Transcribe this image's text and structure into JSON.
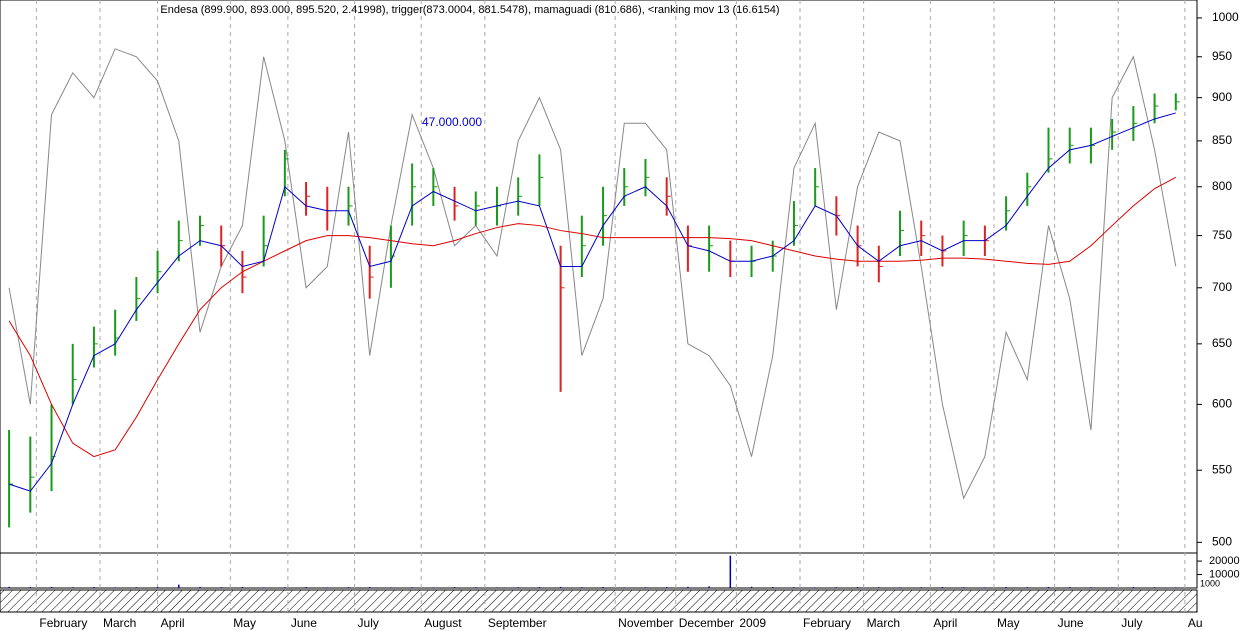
{
  "chart_data": {
    "type": "ohlc",
    "title": "Endesa (899.900, 893.000, 895.520, 2.41998), trigger(873.0004, 881.5478), mamaguadi (810.686), <ranking mov 13 (16.6154)",
    "annotation": "47.000.000",
    "log_scale": true,
    "xlim": [
      0,
      395
    ],
    "xticks": [
      {
        "value": 12,
        "label": "February"
      },
      {
        "value": 33,
        "label": "March"
      },
      {
        "value": 52,
        "label": "April"
      },
      {
        "value": 76,
        "label": "May"
      },
      {
        "value": 95,
        "label": "June"
      },
      {
        "value": 117,
        "label": "July"
      },
      {
        "value": 139,
        "label": "August"
      },
      {
        "value": 160,
        "label": "September"
      },
      {
        "value": 203,
        "label": "November"
      },
      {
        "value": 223,
        "label": "December"
      },
      {
        "value": 243,
        "label": "2009"
      },
      {
        "value": 264,
        "label": "February"
      },
      {
        "value": 285,
        "label": "March"
      },
      {
        "value": 307,
        "label": "April"
      },
      {
        "value": 328,
        "label": "May"
      },
      {
        "value": 348,
        "label": "June"
      },
      {
        "value": 369,
        "label": "July"
      },
      {
        "value": 391,
        "label": "Au"
      }
    ],
    "ylim": [
      493,
      1024
    ],
    "yticks": [
      500,
      550,
      600,
      650,
      700,
      750,
      800,
      850,
      900,
      950,
      1000
    ],
    "x": [
      3,
      10,
      17,
      24,
      31,
      38,
      45,
      52,
      59,
      66,
      73,
      80,
      87,
      94,
      101,
      108,
      115,
      122,
      129,
      136,
      143,
      150,
      157,
      164,
      171,
      178,
      185,
      192,
      199,
      206,
      213,
      220,
      227,
      234,
      241,
      248,
      255,
      262,
      269,
      276,
      283,
      290,
      297,
      304,
      311,
      318,
      325,
      332,
      339,
      346,
      353,
      360,
      367,
      374,
      381,
      388
    ],
    "high": [
      580,
      575,
      600,
      650,
      665,
      680,
      710,
      735,
      765,
      770,
      760,
      735,
      770,
      840,
      805,
      800,
      800,
      740,
      760,
      825,
      820,
      800,
      795,
      800,
      810,
      835,
      740,
      770,
      800,
      820,
      830,
      810,
      760,
      760,
      745,
      740,
      745,
      785,
      820,
      790,
      760,
      740,
      775,
      765,
      750,
      765,
      760,
      790,
      815,
      865,
      865,
      865,
      875,
      890,
      905,
      905
    ],
    "low": [
      510,
      520,
      535,
      600,
      630,
      640,
      670,
      695,
      725,
      740,
      720,
      695,
      720,
      790,
      770,
      755,
      760,
      690,
      700,
      760,
      780,
      765,
      760,
      760,
      770,
      780,
      610,
      710,
      740,
      780,
      790,
      770,
      715,
      715,
      710,
      710,
      715,
      740,
      780,
      750,
      720,
      705,
      730,
      730,
      720,
      730,
      730,
      755,
      780,
      815,
      825,
      825,
      840,
      850,
      870,
      885
    ],
    "close": [
      540,
      545,
      560,
      620,
      650,
      655,
      690,
      715,
      745,
      760,
      740,
      710,
      740,
      830,
      790,
      775,
      780,
      710,
      730,
      800,
      800,
      780,
      780,
      780,
      790,
      810,
      700,
      740,
      770,
      800,
      810,
      790,
      740,
      740,
      725,
      725,
      730,
      760,
      800,
      770,
      740,
      720,
      755,
      750,
      735,
      750,
      745,
      775,
      800,
      830,
      845,
      845,
      860,
      870,
      890,
      895
    ],
    "series": [
      {
        "name": "trigger",
        "color": "#0000cc",
        "values": [
          540,
          535,
          555,
          600,
          640,
          650,
          680,
          705,
          730,
          745,
          740,
          720,
          725,
          800,
          780,
          775,
          775,
          720,
          725,
          780,
          795,
          785,
          775,
          780,
          785,
          780,
          720,
          720,
          760,
          790,
          800,
          780,
          740,
          735,
          725,
          725,
          730,
          745,
          780,
          770,
          740,
          725,
          740,
          745,
          735,
          745,
          745,
          760,
          790,
          820,
          840,
          845,
          855,
          865,
          875,
          882
        ]
      },
      {
        "name": "mamaguadi",
        "color": "#dd0000",
        "values": [
          670,
          640,
          600,
          570,
          560,
          565,
          590,
          620,
          650,
          680,
          700,
          715,
          725,
          735,
          745,
          750,
          750,
          748,
          745,
          742,
          740,
          745,
          752,
          758,
          762,
          760,
          755,
          752,
          748,
          748,
          748,
          748,
          748,
          748,
          747,
          745,
          740,
          735,
          730,
          727,
          725,
          725,
          725,
          726,
          728,
          728,
          727,
          725,
          723,
          722,
          725,
          740,
          760,
          780,
          798,
          810
        ]
      },
      {
        "name": "ranking mov 13",
        "color": "#888888",
        "values": [
          700,
          600,
          880,
          930,
          900,
          960,
          950,
          920,
          850,
          660,
          720,
          760,
          950,
          850,
          700,
          720,
          860,
          640,
          760,
          880,
          820,
          740,
          760,
          730,
          850,
          900,
          840,
          640,
          690,
          870,
          870,
          840,
          650,
          640,
          615,
          560,
          640,
          820,
          870,
          680,
          800,
          860,
          850,
          720,
          600,
          530,
          560,
          660,
          620,
          760,
          690,
          580,
          900,
          950,
          840,
          720
        ]
      }
    ],
    "volume": {
      "color": "#0000aa",
      "ylim": [
        0,
        26000
      ],
      "yticks": [
        10000,
        20000
      ],
      "footer_label": "1000",
      "values": [
        900,
        700,
        800,
        600,
        700,
        500,
        600,
        700,
        2500,
        800,
        600,
        700,
        500,
        600,
        700,
        500,
        600,
        700,
        500,
        600,
        500,
        700,
        600,
        500,
        600,
        700,
        800,
        600,
        700,
        500,
        600,
        700,
        900,
        1200,
        24000,
        900,
        700,
        600,
        500,
        600,
        700,
        600,
        500,
        600,
        700,
        600,
        500,
        700,
        600,
        800,
        700,
        600,
        500,
        700,
        600,
        500
      ]
    }
  }
}
